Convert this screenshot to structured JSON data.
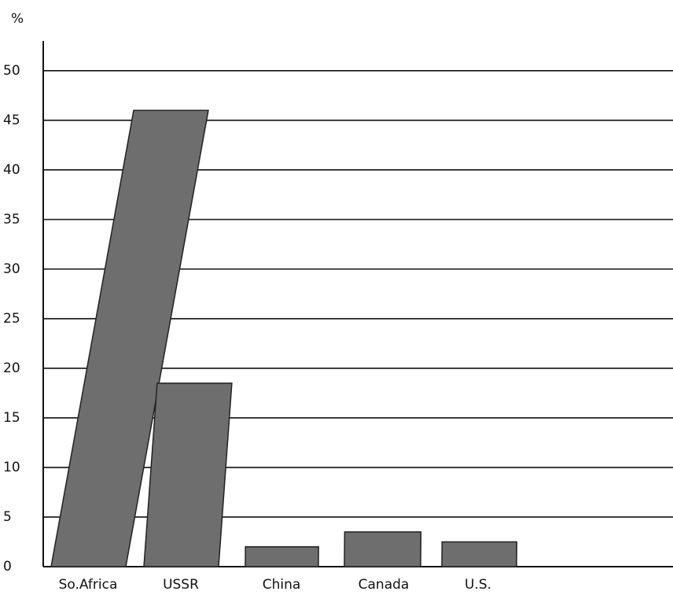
{
  "chart_data": {
    "type": "bar",
    "y_label": "%",
    "categories": [
      "So.Africa",
      "USSR",
      "China",
      "Canada",
      "U.S."
    ],
    "values": [
      46,
      18.5,
      2,
      3.5,
      2.5
    ],
    "color": "#6e6e6e",
    "ylim": [
      0,
      53
    ],
    "yticks": [
      0,
      5,
      10,
      15,
      20,
      25,
      30,
      35,
      40,
      45,
      50
    ],
    "grid": true
  }
}
